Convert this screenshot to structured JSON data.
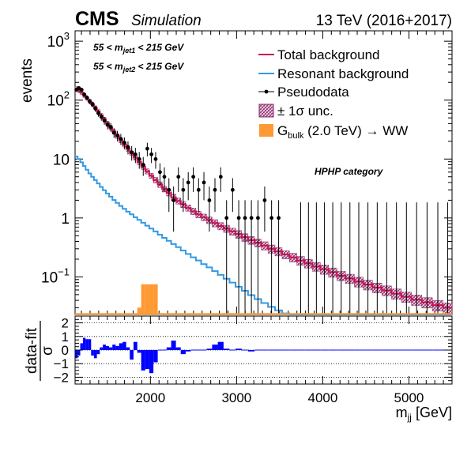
{
  "header": {
    "experiment": "CMS",
    "tag": "Simulation",
    "energy": "13 TeV (2016+2017)"
  },
  "cuts": {
    "line1": {
      "pre": "55 < m",
      "sub": "jet1",
      "post": " < 215 GeV"
    },
    "line2": {
      "pre": "55 < m",
      "sub": "jet2",
      "post": " < 215 GeV"
    }
  },
  "category_label": "HPHP category",
  "legend": [
    {
      "key": "total",
      "text": "Total background"
    },
    {
      "key": "resonant",
      "text": "Resonant background"
    },
    {
      "key": "pseudodata",
      "text": "Pseudodata"
    },
    {
      "key": "unc",
      "text": "± 1σ unc."
    },
    {
      "key": "signal",
      "pre": "G",
      "sub": "bulk",
      "post": " (2.0 TeV) → WW"
    }
  ],
  "colors": {
    "total": "#c8104f",
    "resonant": "#3399e6",
    "band": "#ba6f9e",
    "signal": "#ff9933",
    "pull": "#0000ff",
    "data": "#000000"
  },
  "chart_data": [
    {
      "type": "line",
      "panel": "main",
      "ylabel": "events",
      "yscale": "log",
      "ylim": [
        0.023,
        1500
      ],
      "xlim": [
        1126,
        5500
      ],
      "ytick_labels": [
        {
          "value": 0.1,
          "base": "10",
          "exp": "−1"
        },
        {
          "value": 1,
          "text": "1"
        },
        {
          "value": 10,
          "text": "10"
        },
        {
          "value": 100,
          "base": "10",
          "exp": "2"
        },
        {
          "value": 1000,
          "base": "10",
          "exp": "3"
        }
      ],
      "bins": [
        [
          1126,
          1156
        ],
        [
          1156,
          1186
        ],
        [
          1186,
          1217
        ],
        [
          1217,
          1248
        ],
        [
          1248,
          1280
        ],
        [
          1280,
          1312
        ],
        [
          1312,
          1345
        ],
        [
          1345,
          1379
        ],
        [
          1379,
          1413
        ],
        [
          1413,
          1448
        ],
        [
          1448,
          1484
        ],
        [
          1484,
          1521
        ],
        [
          1521,
          1559
        ],
        [
          1559,
          1597
        ],
        [
          1597,
          1637
        ],
        [
          1637,
          1677
        ],
        [
          1677,
          1719
        ],
        [
          1719,
          1761
        ],
        [
          1761,
          1804
        ],
        [
          1804,
          1848
        ],
        [
          1848,
          1893
        ],
        [
          1893,
          1940
        ],
        [
          1940,
          1987
        ],
        [
          1987,
          2035
        ],
        [
          2035,
          2085
        ],
        [
          2085,
          2136
        ],
        [
          2136,
          2188
        ],
        [
          2188,
          2241
        ],
        [
          2241,
          2296
        ],
        [
          2296,
          2352
        ],
        [
          2352,
          2409
        ],
        [
          2409,
          2468
        ],
        [
          2468,
          2528
        ],
        [
          2528,
          2589
        ],
        [
          2589,
          2652
        ],
        [
          2652,
          2716
        ],
        [
          2716,
          2782
        ],
        [
          2782,
          2849
        ],
        [
          2849,
          2918
        ],
        [
          2918,
          2988
        ],
        [
          2988,
          3060
        ],
        [
          3060,
          3133
        ],
        [
          3133,
          3209
        ],
        [
          3209,
          3286
        ],
        [
          3286,
          3365
        ],
        [
          3365,
          3446
        ],
        [
          3446,
          3528
        ],
        [
          3528,
          3613
        ],
        [
          3613,
          3699
        ],
        [
          3699,
          3788
        ],
        [
          3788,
          3879
        ],
        [
          3879,
          3972
        ],
        [
          3972,
          4067
        ],
        [
          4067,
          4164
        ],
        [
          4164,
          4264
        ],
        [
          4264,
          4366
        ],
        [
          4366,
          4470
        ],
        [
          4470,
          4577
        ],
        [
          4577,
          4686
        ],
        [
          4686,
          4798
        ],
        [
          4798,
          4912
        ],
        [
          4912,
          5029
        ],
        [
          5029,
          5149
        ],
        [
          5149,
          5272
        ],
        [
          5272,
          5397
        ],
        [
          5397,
          5500
        ]
      ],
      "series": [
        {
          "name": "Total background",
          "values": [
            158,
            146,
            134,
            121,
            108,
            96,
            85,
            74,
            64,
            55,
            47,
            40,
            34,
            29,
            24.5,
            20.8,
            17.6,
            14.9,
            12.6,
            10.6,
            8.9,
            7.4,
            6.2,
            5.2,
            4.4,
            3.7,
            3.1,
            2.65,
            2.25,
            1.95,
            1.7,
            1.48,
            1.3,
            1.15,
            1.03,
            0.92,
            0.82,
            0.73,
            0.66,
            0.59,
            0.53,
            0.47,
            0.42,
            0.38,
            0.34,
            0.3,
            0.27,
            0.24,
            0.215,
            0.19,
            0.17,
            0.15,
            0.135,
            0.12,
            0.105,
            0.094,
            0.083,
            0.074,
            0.066,
            0.059,
            0.052,
            0.046,
            0.041,
            0.037,
            0.033,
            0.03
          ]
        },
        {
          "name": "Resonant background",
          "values": [
            11,
            10,
            8.8,
            7.6,
            6.6,
            5.7,
            5,
            4.4,
            3.85,
            3.35,
            2.95,
            2.6,
            2.3,
            2.02,
            1.8,
            1.6,
            1.43,
            1.28,
            1.15,
            1.03,
            0.93,
            0.83,
            0.74,
            0.66,
            0.59,
            0.52,
            0.46,
            0.41,
            0.36,
            0.32,
            0.28,
            0.245,
            0.215,
            0.19,
            0.165,
            0.145,
            0.125,
            0.108,
            0.093,
            0.08,
            0.068,
            0.058,
            0.049,
            0.042,
            0.036,
            0.031,
            0.027,
            0.024,
            0.022,
            0.021,
            0.02,
            0.02,
            0.02,
            0.02,
            0.02,
            0.02,
            0.02,
            0.02,
            0.02,
            0.02,
            0.02,
            0.02,
            0.02,
            0.02,
            0.02,
            0.02
          ]
        },
        {
          "name": "G_bulk (2.0 TeV) → WW",
          "style": "fill",
          "values": [
            0,
            0,
            0,
            0,
            0,
            0,
            0,
            0,
            0,
            0,
            0,
            0,
            0,
            0,
            0,
            0,
            0,
            0,
            0,
            0,
            0.03,
            0.075,
            0.075,
            0.075,
            0.075,
            0,
            0,
            0,
            0,
            0,
            0,
            0,
            0,
            0,
            0,
            0,
            0,
            0,
            0,
            0,
            0,
            0,
            0,
            0,
            0,
            0,
            0,
            0,
            0,
            0,
            0,
            0,
            0,
            0,
            0,
            0,
            0,
            0,
            0,
            0,
            0,
            0,
            0,
            0,
            0,
            0
          ]
        }
      ],
      "band_relative": [
        0.08,
        0.08,
        0.08,
        0.08,
        0.08,
        0.08,
        0.08,
        0.08,
        0.08,
        0.08,
        0.09,
        0.09,
        0.09,
        0.09,
        0.09,
        0.09,
        0.09,
        0.09,
        0.09,
        0.09,
        0.1,
        0.1,
        0.1,
        0.1,
        0.11,
        0.11,
        0.11,
        0.11,
        0.12,
        0.12,
        0.12,
        0.12,
        0.13,
        0.13,
        0.13,
        0.13,
        0.14,
        0.14,
        0.14,
        0.14,
        0.15,
        0.15,
        0.15,
        0.15,
        0.16,
        0.16,
        0.16,
        0.16,
        0.17,
        0.17,
        0.17,
        0.17,
        0.18,
        0.18,
        0.18,
        0.18,
        0.19,
        0.19,
        0.19,
        0.19,
        0.2,
        0.2,
        0.2,
        0.2,
        0.2,
        0.2
      ],
      "pseudodata": {
        "x": [
          1141,
          1171,
          1202,
          1233,
          1264,
          1296,
          1329,
          1362,
          1396,
          1431,
          1466,
          1503,
          1540,
          1578,
          1617,
          1657,
          1698,
          1740,
          1783,
          1826,
          1871,
          1917,
          1964,
          2012,
          2061,
          2111,
          2162,
          2215,
          2269,
          2325,
          2381,
          2439,
          2498,
          2559,
          2621,
          2684,
          2749,
          2816,
          2884,
          2954,
          3025,
          3098,
          3172,
          3248,
          3326,
          3406,
          3488
        ],
        "y": [
          150,
          160,
          150,
          125,
          110,
          95,
          85,
          72,
          60,
          52,
          45,
          38,
          35,
          28,
          25,
          22,
          19,
          16,
          13,
          12,
          10,
          8,
          15,
          12,
          10,
          6,
          5,
          3,
          2,
          5,
          3,
          4,
          5,
          3,
          4,
          2,
          3,
          5,
          1,
          3,
          1,
          1,
          1,
          1,
          2,
          1,
          1
        ]
      },
      "pseudodata_zero_x": [
        3744,
        3834,
        3926,
        4020,
        4116,
        4214,
        4315,
        4418,
        4524,
        4632,
        4742,
        4855,
        4971,
        5089,
        5210,
        5335,
        5449
      ]
    },
    {
      "type": "bar",
      "panel": "ratio",
      "ylabel": "(data-fit)/σ",
      "ylim": [
        -2.5,
        2.5
      ],
      "yticks": [
        -2,
        -1,
        0,
        1,
        2
      ],
      "xlabel": "m_jj [GeV]",
      "xticks": [
        2000,
        3000,
        4000,
        5000
      ],
      "values": [
        -0.6,
        -0.4,
        0.5,
        0.9,
        0.8,
        0.8,
        -0.4,
        -0.6,
        -0.3,
        0.2,
        0.4,
        0.3,
        0.2,
        0.4,
        0.3,
        0.5,
        0.6,
        0.2,
        -0.7,
        0.6,
        -0.2,
        -1.5,
        -1.4,
        -1.7,
        -0.9,
        0,
        0,
        0.2,
        0.7,
        0.2,
        -0.3,
        -0.1,
        0,
        0,
        0,
        0.1,
        0.4,
        0.6,
        0.1,
        0,
        0.1,
        0,
        -0.1,
        0,
        0,
        0,
        0,
        0,
        0,
        0,
        0,
        0,
        0,
        0,
        0,
        0,
        0,
        0,
        0,
        0,
        0,
        0,
        0,
        0,
        0,
        0
      ]
    }
  ]
}
